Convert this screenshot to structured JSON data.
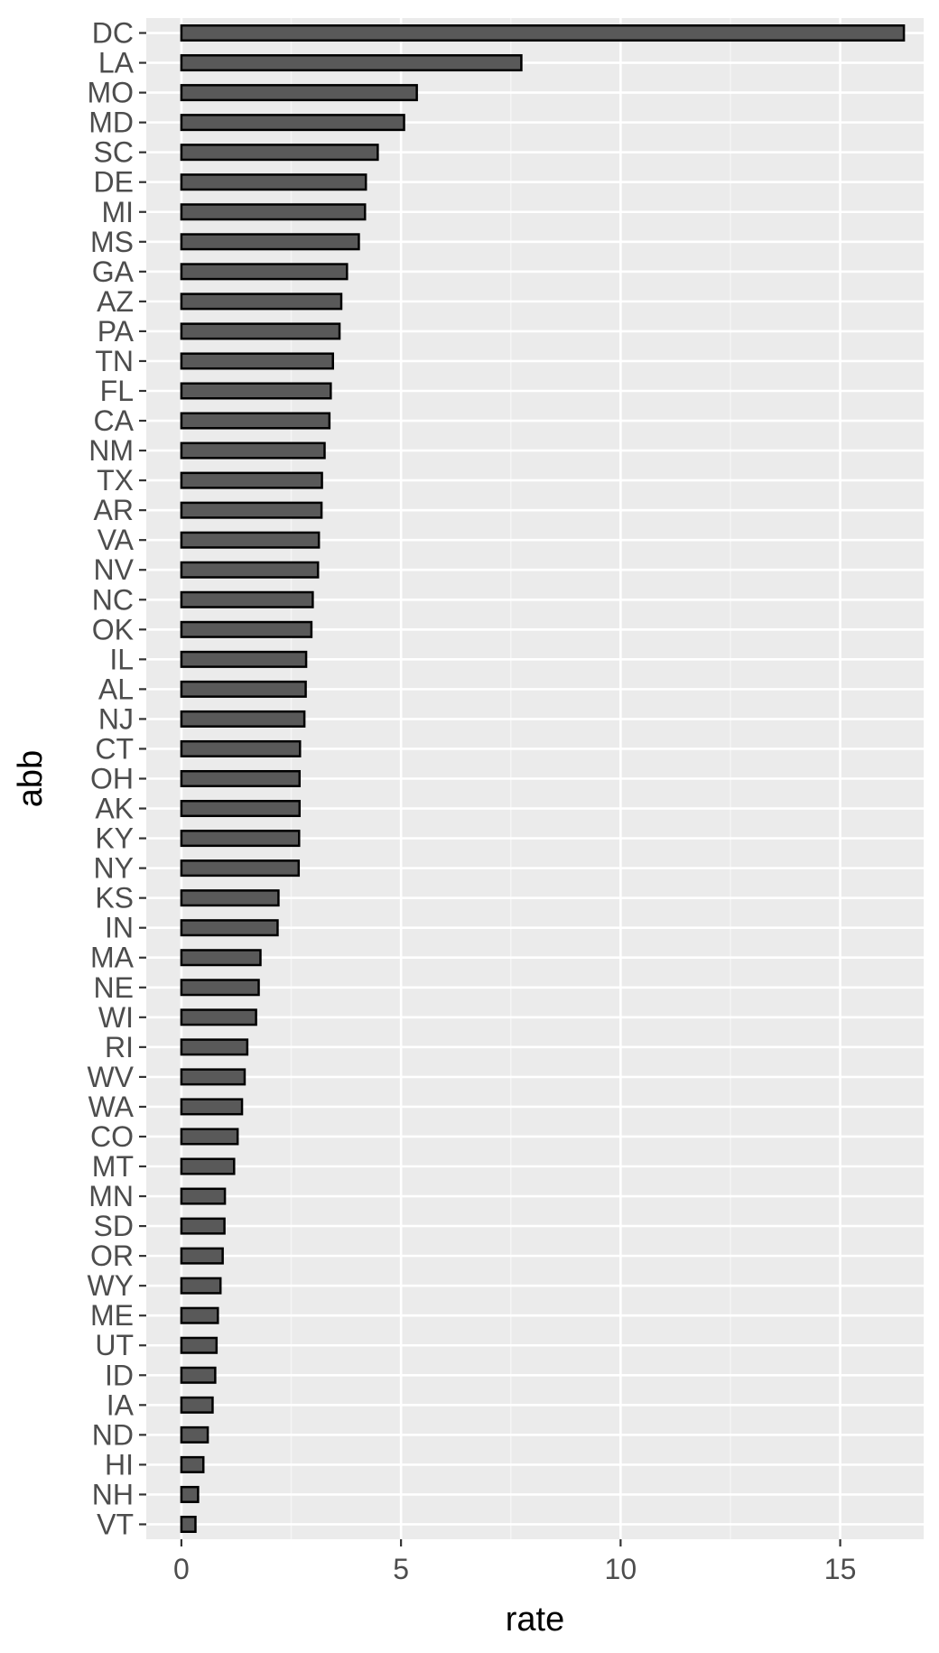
{
  "chart_data": {
    "type": "bar",
    "orientation": "horizontal",
    "xlabel": "rate",
    "ylabel": "abb",
    "xlim": [
      -0.8,
      16.9
    ],
    "x_ticks": [
      0,
      5,
      10,
      15
    ],
    "grid": true,
    "colors": {
      "panel_background": "#ebebeb",
      "grid_major": "#ffffff",
      "grid_minor": "#f5f5f5",
      "bar_fill": "#595959",
      "bar_outline": "#000000",
      "tick_label": "#4d4d4d",
      "axis_title": "#000000"
    },
    "categories": [
      "DC",
      "LA",
      "MO",
      "MD",
      "SC",
      "DE",
      "MI",
      "MS",
      "GA",
      "AZ",
      "PA",
      "TN",
      "FL",
      "CA",
      "NM",
      "TX",
      "AR",
      "VA",
      "NV",
      "NC",
      "OK",
      "IL",
      "AL",
      "NJ",
      "CT",
      "OH",
      "AK",
      "KY",
      "NY",
      "KS",
      "IN",
      "MA",
      "NE",
      "WI",
      "RI",
      "WV",
      "WA",
      "CO",
      "MT",
      "MN",
      "SD",
      "OR",
      "WY",
      "ME",
      "UT",
      "ID",
      "IA",
      "ND",
      "HI",
      "NH",
      "VT"
    ],
    "values": [
      16.45,
      7.74,
      5.36,
      5.07,
      4.47,
      4.2,
      4.18,
      4.04,
      3.77,
      3.64,
      3.6,
      3.45,
      3.4,
      3.37,
      3.26,
      3.2,
      3.19,
      3.13,
      3.11,
      2.99,
      2.96,
      2.84,
      2.83,
      2.8,
      2.7,
      2.69,
      2.69,
      2.68,
      2.67,
      2.21,
      2.19,
      1.8,
      1.76,
      1.7,
      1.5,
      1.44,
      1.38,
      1.28,
      1.2,
      0.99,
      0.98,
      0.94,
      0.89,
      0.83,
      0.8,
      0.77,
      0.71,
      0.6,
      0.5,
      0.38,
      0.32
    ]
  }
}
